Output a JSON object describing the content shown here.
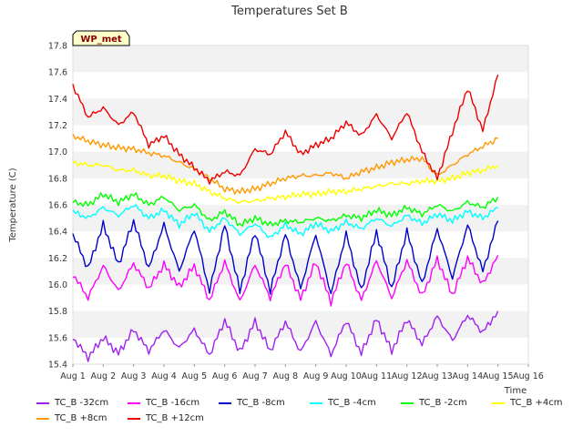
{
  "chart_data": {
    "type": "line",
    "title": "Temperatures Set B",
    "xlabel": "Time",
    "ylabel": "Temperature (C)",
    "badge": "WP_met",
    "ylim": [
      15.4,
      17.8
    ],
    "yticks": [
      "15.4",
      "15.6",
      "15.8",
      "16.0",
      "16.2",
      "16.4",
      "16.6",
      "16.8",
      "17.0",
      "17.2",
      "17.4",
      "17.6",
      "17.8"
    ],
    "xlim": [
      1,
      16
    ],
    "xticks": [
      "Aug 1",
      "Aug 2",
      "Aug 3",
      "Aug 4",
      "Aug 5",
      "Aug 6",
      "Aug 7",
      "Aug 8",
      "Aug 9",
      "Aug 10",
      "Aug 11",
      "Aug 12",
      "Aug 13",
      "Aug 14",
      "Aug 15",
      "Aug 16"
    ],
    "grid": "horizontal bands",
    "x": [
      1,
      1.5,
      2,
      2.5,
      3,
      3.5,
      4,
      4.5,
      5,
      5.5,
      6,
      6.5,
      7,
      7.5,
      8,
      8.5,
      9,
      9.5,
      10,
      10.5,
      11,
      11.5,
      12,
      12.5,
      13,
      13.5,
      14,
      14.5,
      15
    ],
    "series": [
      {
        "name": "TC_B -32cm",
        "color": "#a020f0",
        "values": [
          15.6,
          15.45,
          15.6,
          15.48,
          15.66,
          15.5,
          15.66,
          15.52,
          15.66,
          15.47,
          15.73,
          15.49,
          15.72,
          15.5,
          15.72,
          15.49,
          15.72,
          15.47,
          15.73,
          15.48,
          15.74,
          15.5,
          15.74,
          15.55,
          15.76,
          15.58,
          15.77,
          15.64,
          15.8
        ]
      },
      {
        "name": "TC_B -16cm",
        "color": "#ff00ff",
        "values": [
          16.08,
          15.9,
          16.14,
          15.95,
          16.16,
          15.97,
          16.15,
          15.98,
          16.14,
          15.88,
          16.17,
          15.87,
          16.15,
          15.9,
          16.16,
          15.89,
          16.17,
          15.87,
          16.17,
          15.88,
          16.18,
          15.9,
          16.18,
          15.91,
          16.19,
          15.92,
          16.2,
          16.0,
          16.22
        ]
      },
      {
        "name": "TC_B -8cm",
        "color": "#0000cd",
        "values": [
          16.38,
          16.12,
          16.45,
          16.15,
          16.48,
          16.12,
          16.45,
          16.1,
          16.42,
          15.95,
          16.45,
          15.95,
          16.4,
          15.95,
          16.38,
          15.97,
          16.38,
          15.93,
          16.38,
          15.95,
          16.4,
          15.97,
          16.4,
          16.0,
          16.42,
          16.05,
          16.45,
          16.1,
          16.48
        ]
      },
      {
        "name": "TC_B -4cm",
        "color": "#00ffff",
        "values": [
          16.55,
          16.5,
          16.58,
          16.52,
          16.6,
          16.5,
          16.56,
          16.45,
          16.54,
          16.4,
          16.5,
          16.38,
          16.46,
          16.35,
          16.45,
          16.38,
          16.46,
          16.4,
          16.47,
          16.42,
          16.5,
          16.44,
          16.52,
          16.46,
          16.53,
          16.48,
          16.55,
          16.5,
          16.58
        ]
      },
      {
        "name": "TC_B -2cm",
        "color": "#00ff00",
        "values": [
          16.62,
          16.6,
          16.68,
          16.62,
          16.68,
          16.6,
          16.66,
          16.56,
          16.6,
          16.48,
          16.55,
          16.45,
          16.5,
          16.45,
          16.48,
          16.47,
          16.5,
          16.48,
          16.52,
          16.5,
          16.56,
          16.52,
          16.58,
          16.53,
          16.6,
          16.55,
          16.62,
          16.58,
          16.66
        ]
      },
      {
        "name": "TC_B +4cm",
        "color": "#ffff00",
        "values": [
          16.92,
          16.9,
          16.9,
          16.86,
          16.86,
          16.82,
          16.82,
          16.78,
          16.76,
          16.7,
          16.65,
          16.62,
          16.63,
          16.65,
          16.66,
          16.68,
          16.68,
          16.7,
          16.7,
          16.72,
          16.74,
          16.76,
          16.76,
          16.78,
          16.78,
          16.8,
          16.84,
          16.86,
          16.9
        ]
      },
      {
        "name": "TC_B +8cm",
        "color": "#ff9900",
        "values": [
          17.12,
          17.08,
          17.05,
          17.03,
          17.02,
          16.99,
          16.97,
          16.92,
          16.87,
          16.8,
          16.72,
          16.7,
          16.72,
          16.76,
          16.8,
          16.82,
          16.82,
          16.84,
          16.8,
          16.85,
          16.88,
          16.92,
          16.94,
          16.95,
          16.82,
          16.9,
          16.98,
          17.04,
          17.1
        ]
      },
      {
        "name": "TC_B +12cm",
        "color": "#ee0000",
        "values": [
          17.5,
          17.26,
          17.33,
          17.2,
          17.3,
          17.05,
          17.12,
          16.98,
          16.88,
          16.78,
          16.85,
          16.82,
          17.02,
          16.98,
          17.15,
          16.98,
          17.05,
          17.1,
          17.22,
          17.12,
          17.28,
          17.1,
          17.3,
          17.0,
          16.8,
          17.15,
          17.48,
          17.16,
          17.58
        ]
      }
    ]
  }
}
